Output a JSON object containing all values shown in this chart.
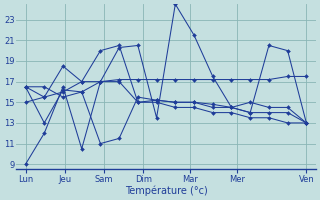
{
  "background_color": "#c5e0e0",
  "grid_color": "#8ab5b5",
  "line_color": "#1f3d99",
  "xlabel": "Température (°c)",
  "ylim": [
    8.5,
    24.5
  ],
  "yticks": [
    9,
    11,
    13,
    15,
    17,
    19,
    21,
    23
  ],
  "day_labels": [
    "Lun",
    "Jeu",
    "Sam",
    "Dim",
    "Mar",
    "Mer",
    "Ven"
  ],
  "day_x_positions": [
    0,
    1,
    2,
    3,
    4,
    5,
    7
  ],
  "lines": [
    [
      9,
      12,
      16.5,
      10.5,
      17,
      20.3,
      20.5,
      13.5,
      24.5,
      21.5,
      17.5,
      14.5,
      14,
      20.5,
      20,
      13
    ],
    [
      16.5,
      16.5,
      15.5,
      16,
      17,
      17.2,
      17.2,
      17.2,
      17.2,
      17.2,
      17.2,
      17.2,
      17.2,
      17.2,
      17.5,
      17.5
    ],
    [
      16.5,
      15.5,
      18.5,
      17,
      20,
      20.5,
      15,
      15.2,
      15,
      15,
      14.5,
      14.5,
      15,
      14.5,
      14.5,
      13
    ],
    [
      16.5,
      13,
      16.2,
      16,
      11,
      11.5,
      15.5,
      15.2,
      15,
      15,
      14.8,
      14.5,
      14,
      14,
      14,
      13
    ],
    [
      15,
      15.5,
      16,
      17,
      17,
      17,
      15,
      15,
      14.5,
      14.5,
      14,
      14,
      13.5,
      13.5,
      13,
      13
    ]
  ],
  "n_points": 16,
  "figsize": [
    3.2,
    2.0
  ],
  "dpi": 100
}
